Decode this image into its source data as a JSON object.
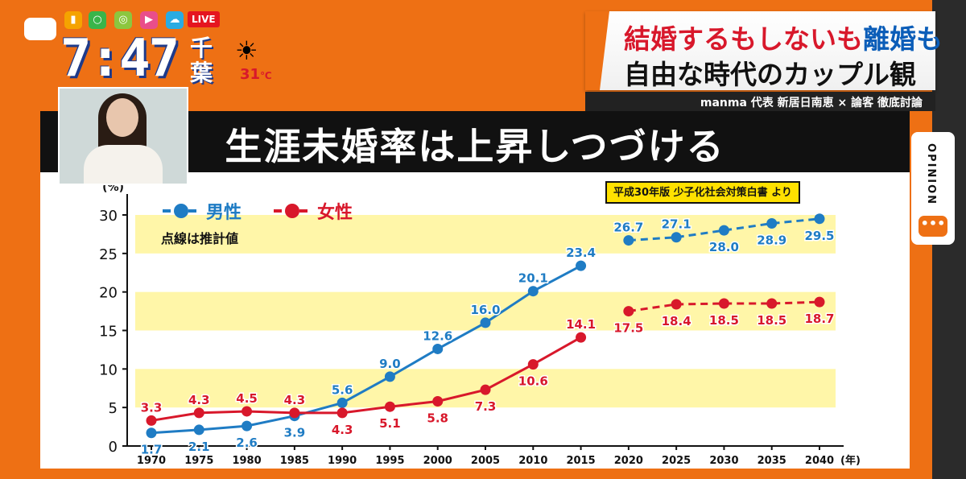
{
  "header": {
    "clock": "7:47",
    "region": "千葉",
    "temperature": "31",
    "temperature_unit": "℃",
    "weather_icon": "sun-cloud-icon",
    "live_label": "LIVE"
  },
  "headline": {
    "line1_a": "結婚するもしないも",
    "line1_b": "離婚",
    "line1_c": "も",
    "line2": "自由な時代のカップル観",
    "subline": "manma 代表 新居日南恵 × 論客 徹底討論"
  },
  "side_tab": {
    "label": "OPINION",
    "dots": "•••"
  },
  "banner": {
    "title": "生涯未婚率は上昇しつづける"
  },
  "colors": {
    "male": "#1f7cc4",
    "female": "#d8182b",
    "band": "#fff6a8",
    "accent": "#ee7014"
  },
  "chart_data": {
    "type": "line",
    "source": "平成30年版 少子化社会対策白書 より",
    "x_unit": "(年)",
    "y_unit": "(%)",
    "note": "点線は推計値",
    "ylim": [
      0,
      30
    ],
    "yticks": [
      0,
      5,
      10,
      15,
      20,
      25,
      30
    ],
    "x": [
      1970,
      1975,
      1980,
      1985,
      1990,
      1995,
      2000,
      2005,
      2010,
      2015,
      2020,
      2025,
      2030,
      2035,
      2040
    ],
    "grid": "horizontal bands",
    "legend_placement": "top-left",
    "series": [
      {
        "name": "男性",
        "color": "#1f7cc4",
        "actual": {
          "x": [
            1970,
            1975,
            1980,
            1985,
            1990,
            1995,
            2000,
            2005,
            2010,
            2015
          ],
          "values": [
            1.7,
            2.1,
            2.6,
            3.9,
            5.6,
            9.0,
            12.6,
            16.0,
            20.1,
            23.4
          ],
          "labels": [
            "1.7",
            "2.1",
            "2.6",
            "3.9",
            "5.6",
            "9.0",
            "12.6",
            "16.0",
            "20.1",
            "23.4"
          ]
        },
        "projected": {
          "x": [
            2020,
            2025,
            2030,
            2035,
            2040
          ],
          "values": [
            26.7,
            27.1,
            28.0,
            28.9,
            29.5
          ],
          "labels": [
            "26.7",
            "27.1",
            "28.0",
            "28.9",
            "29.5"
          ]
        }
      },
      {
        "name": "女性",
        "color": "#d8182b",
        "actual": {
          "x": [
            1970,
            1975,
            1980,
            1985,
            1990,
            1995,
            2000,
            2005,
            2010,
            2015
          ],
          "values": [
            3.3,
            4.3,
            4.5,
            4.3,
            4.3,
            5.1,
            5.8,
            7.3,
            10.6,
            14.1
          ],
          "labels": [
            "3.3",
            "4.3",
            "4.5",
            "4.3",
            "4.3",
            "5.1",
            "5.8",
            "7.3",
            "10.6",
            "14.1"
          ]
        },
        "projected": {
          "x": [
            2020,
            2025,
            2030,
            2035,
            2040
          ],
          "values": [
            17.5,
            18.4,
            18.5,
            18.5,
            18.7
          ],
          "labels": [
            "17.5",
            "18.4",
            "18.5",
            "18.5",
            "18.7"
          ]
        }
      }
    ]
  }
}
